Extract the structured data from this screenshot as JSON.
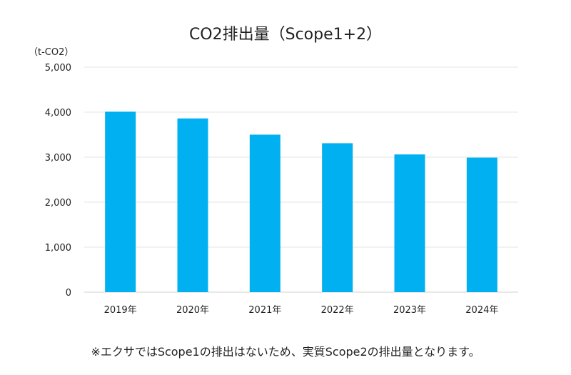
{
  "chart_data": {
    "type": "bar",
    "title": "CO2排出量（Scope1+2）",
    "ylabel": "（t-CO2）",
    "xlabel": "",
    "categories": [
      "2019年",
      "2020年",
      "2021年",
      "2022年",
      "2023年",
      "2024年"
    ],
    "values": [
      4010,
      3860,
      3500,
      3310,
      3060,
      2990
    ],
    "ylim": [
      0,
      5000
    ],
    "yticks": [
      0,
      1000,
      2000,
      3000,
      4000,
      5000
    ],
    "ytick_labels": [
      "0",
      "1,000",
      "2,000",
      "3,000",
      "4,000",
      "5,000"
    ],
    "grid": true,
    "bar_color": "#00b0f0"
  },
  "footnote": "※エクサではScope1の排出はないため、実質Scope2の排出量となります。"
}
